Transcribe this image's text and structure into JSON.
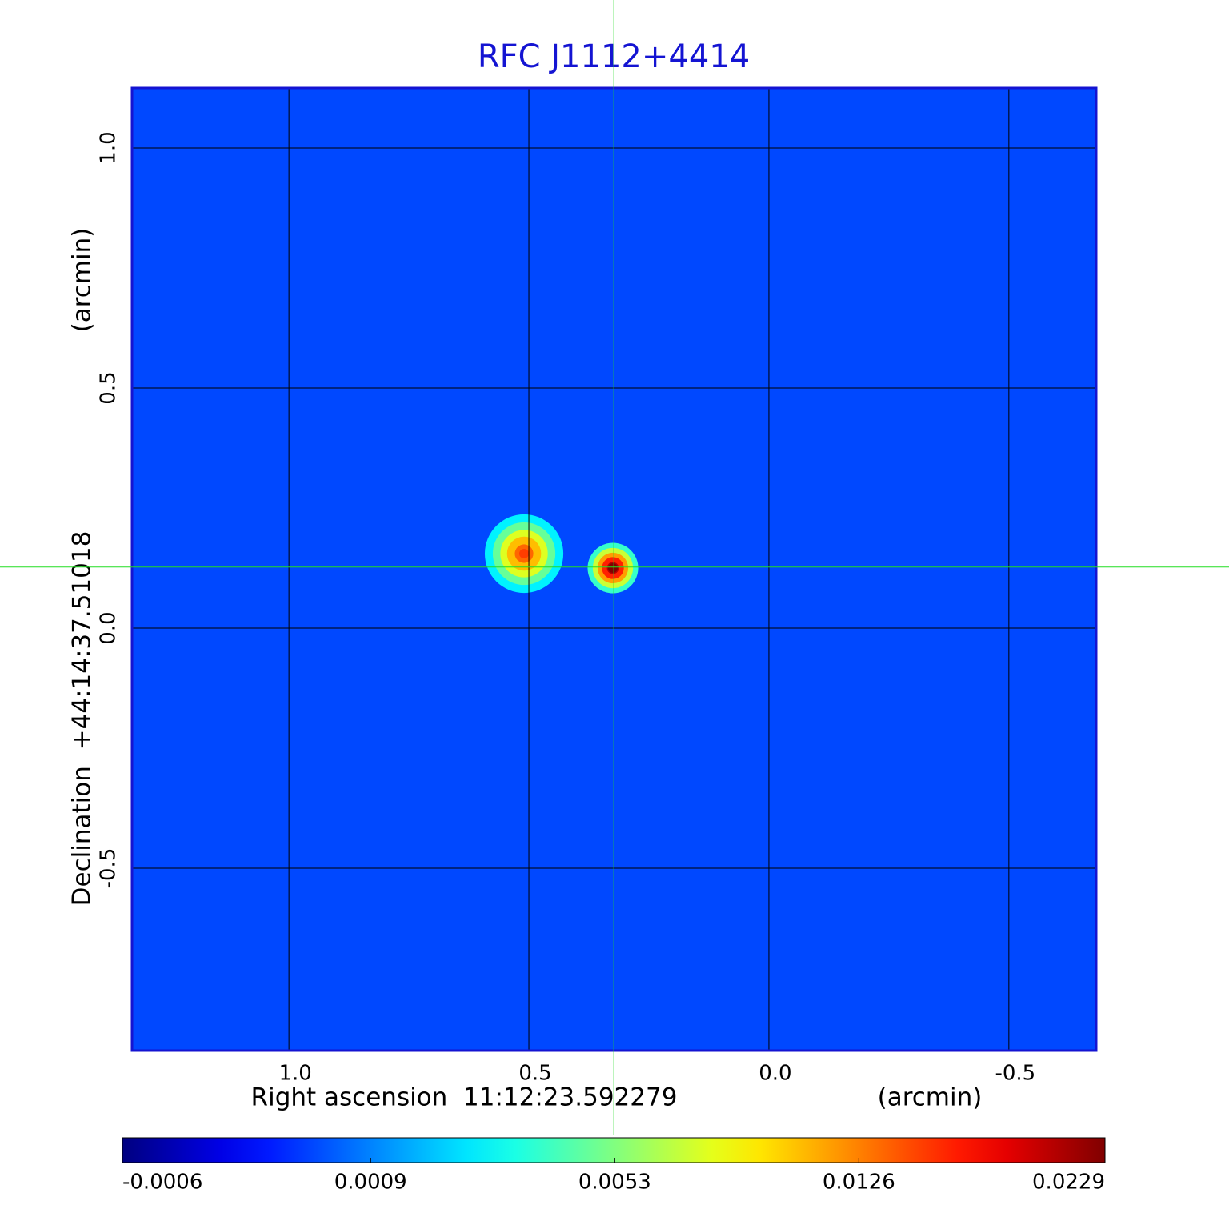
{
  "chart_data": {
    "type": "image",
    "title": "RFC J1112+4414",
    "x_label": "Right ascension  11:12:23.592279",
    "x_unit": "(arcmin)",
    "y_label": "Declination  +44:14:37.51018",
    "y_unit": "(arcmin)",
    "xlim": [
      1.327,
      -0.682
    ],
    "ylim": [
      -0.88,
      1.125
    ],
    "xticks": [
      {
        "value": 1,
        "label": "1.0"
      },
      0.5,
      {
        "value": 0,
        "label": "0.0"
      },
      -0.5
    ],
    "yticks": [
      {
        "value": 1,
        "label": "1.0"
      },
      0.5,
      {
        "value": 0,
        "label": "0.0"
      },
      -0.5
    ],
    "grid": true,
    "colormap": "jet",
    "color_scale": "sqrt",
    "clim": [
      -0.0006,
      0.0229
    ],
    "colorbar_ticks": [
      -0.0006,
      0.0009,
      0.0053,
      0.0126,
      0.0229
    ],
    "background_level": 0.0003,
    "crosshair": [
      0.323,
      0.127
    ],
    "sources": {
      "x": [
        0.51,
        0.325
      ],
      "y": [
        0.155,
        0.125
      ],
      "peak": [
        0.015,
        0.0229
      ],
      "size": [
        0.07,
        0.045
      ]
    }
  }
}
